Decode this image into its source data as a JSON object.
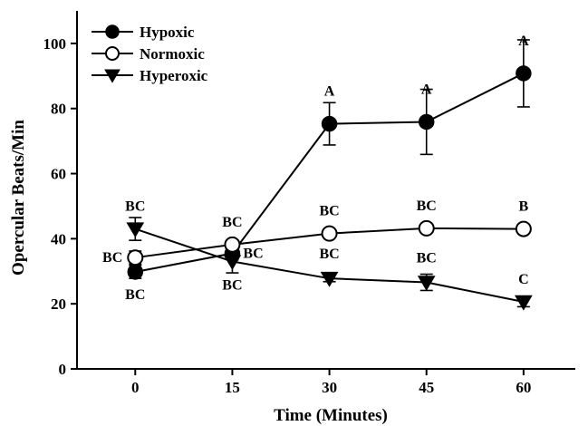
{
  "chart_data": {
    "type": "line",
    "xlabel": "Time (Minutes)",
    "ylabel": "Opercular Beats/Min",
    "x": [
      0,
      15,
      30,
      45,
      60
    ],
    "x_ticks": [
      "0",
      "15",
      "30",
      "45",
      "60"
    ],
    "xlim": [
      -9,
      68
    ],
    "ylim": [
      0,
      110
    ],
    "y_ticks": [
      "0",
      "20",
      "40",
      "60",
      "80",
      "100"
    ],
    "grid": false,
    "legend_position": "top-left",
    "series": [
      {
        "name": "Hypoxic",
        "marker": "filled-circle",
        "values": [
          29.8,
          35.5,
          75.3,
          75.9,
          90.8
        ],
        "error": [
          2.0,
          2.0,
          6.5,
          10.0,
          10.3
        ],
        "labels": [
          "BC",
          "BC",
          "A",
          "A",
          "A"
        ]
      },
      {
        "name": "Normoxic",
        "marker": "open-circle",
        "values": [
          34.2,
          38.2,
          41.6,
          43.2,
          43.0
        ],
        "error": [
          2.0,
          1.2,
          1.0,
          1.0,
          1.0
        ],
        "labels": [
          "BC",
          "BC",
          "BC",
          "BC",
          "B"
        ]
      },
      {
        "name": "Hyperoxic",
        "marker": "filled-triangle-down",
        "values": [
          43.0,
          33.0,
          27.8,
          26.6,
          20.6
        ],
        "error": [
          3.5,
          3.5,
          1.0,
          2.5,
          1.5
        ],
        "labels": [
          "BC",
          "BC",
          "BC",
          "BC",
          "C"
        ]
      }
    ]
  }
}
